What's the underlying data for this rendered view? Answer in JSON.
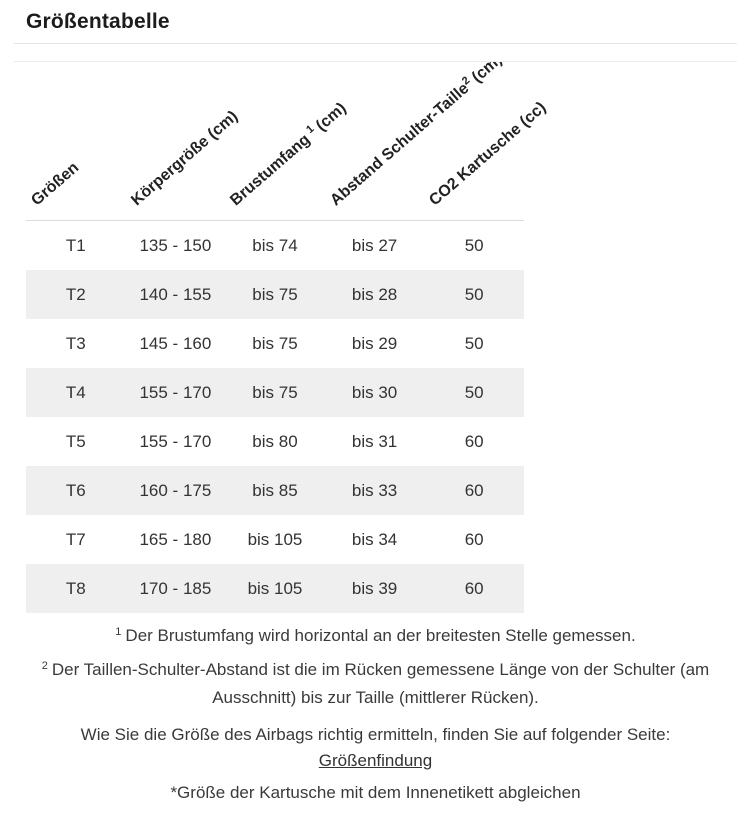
{
  "page": {
    "title": "Größentabelle"
  },
  "table": {
    "headers": [
      {
        "label": "Größen",
        "sup": "",
        "suffix": ""
      },
      {
        "label": "Körpergröße (cm)",
        "sup": "",
        "suffix": ""
      },
      {
        "label": "Brustumfang",
        "sup": "1",
        "suffix": "(cm)"
      },
      {
        "label": "Abstand Schulter-Taille",
        "sup": "2",
        "suffix": "(cm)"
      },
      {
        "label": "CO2 Kartusche (cc)",
        "sup": "",
        "suffix": ""
      }
    ],
    "rows": [
      {
        "size": "T1",
        "koerpergroesse": "135 - 150",
        "brustumfang": "bis 74",
        "abstand": "bis 27",
        "kartusche": "50"
      },
      {
        "size": "T2",
        "koerpergroesse": "140 - 155",
        "brustumfang": "bis 75",
        "abstand": "bis 28",
        "kartusche": "50"
      },
      {
        "size": "T3",
        "koerpergroesse": "145 - 160",
        "brustumfang": "bis 75",
        "abstand": "bis 29",
        "kartusche": "50"
      },
      {
        "size": "T4",
        "koerpergroesse": "155 - 170",
        "brustumfang": "bis 75",
        "abstand": "bis 30",
        "kartusche": "50"
      },
      {
        "size": "T5",
        "koerpergroesse": "155 - 170",
        "brustumfang": "bis 80",
        "abstand": "bis 31",
        "kartusche": "60"
      },
      {
        "size": "T6",
        "koerpergroesse": "160 - 175",
        "brustumfang": "bis 85",
        "abstand": "bis 33",
        "kartusche": "60"
      },
      {
        "size": "T7",
        "koerpergroesse": "165 - 180",
        "brustumfang": "bis 105",
        "abstand": "bis 34",
        "kartusche": "60"
      },
      {
        "size": "T8",
        "koerpergroesse": "170 - 185",
        "brustumfang": "bis 105",
        "abstand": "bis 39",
        "kartusche": "60"
      }
    ]
  },
  "footnotes": {
    "fn1_sup": "1",
    "fn1_text": "Der Brustumfang wird horizontal an der breitesten Stelle gemessen.",
    "fn2_sup": "2",
    "fn2_text": "Der Taillen-Schulter-Abstand ist die im Rücken gemessene Länge von der Schulter (am Ausschnitt) bis zur Taille (mittlerer Rücken).",
    "info_text": "Wie Sie die Größe des Airbags richtig ermitteln, finden Sie auf folgender Seite:",
    "link_label": "Größenfindung",
    "asterisk_note": "*Größe der Kartusche mit dem Innenetikett abgleichen"
  },
  "colors": {
    "stripe": "#efefef",
    "text": "#333333",
    "title_text": "#1c1c1c",
    "header_underline": "#dcdcdc",
    "divider": "#e5e5e5"
  }
}
